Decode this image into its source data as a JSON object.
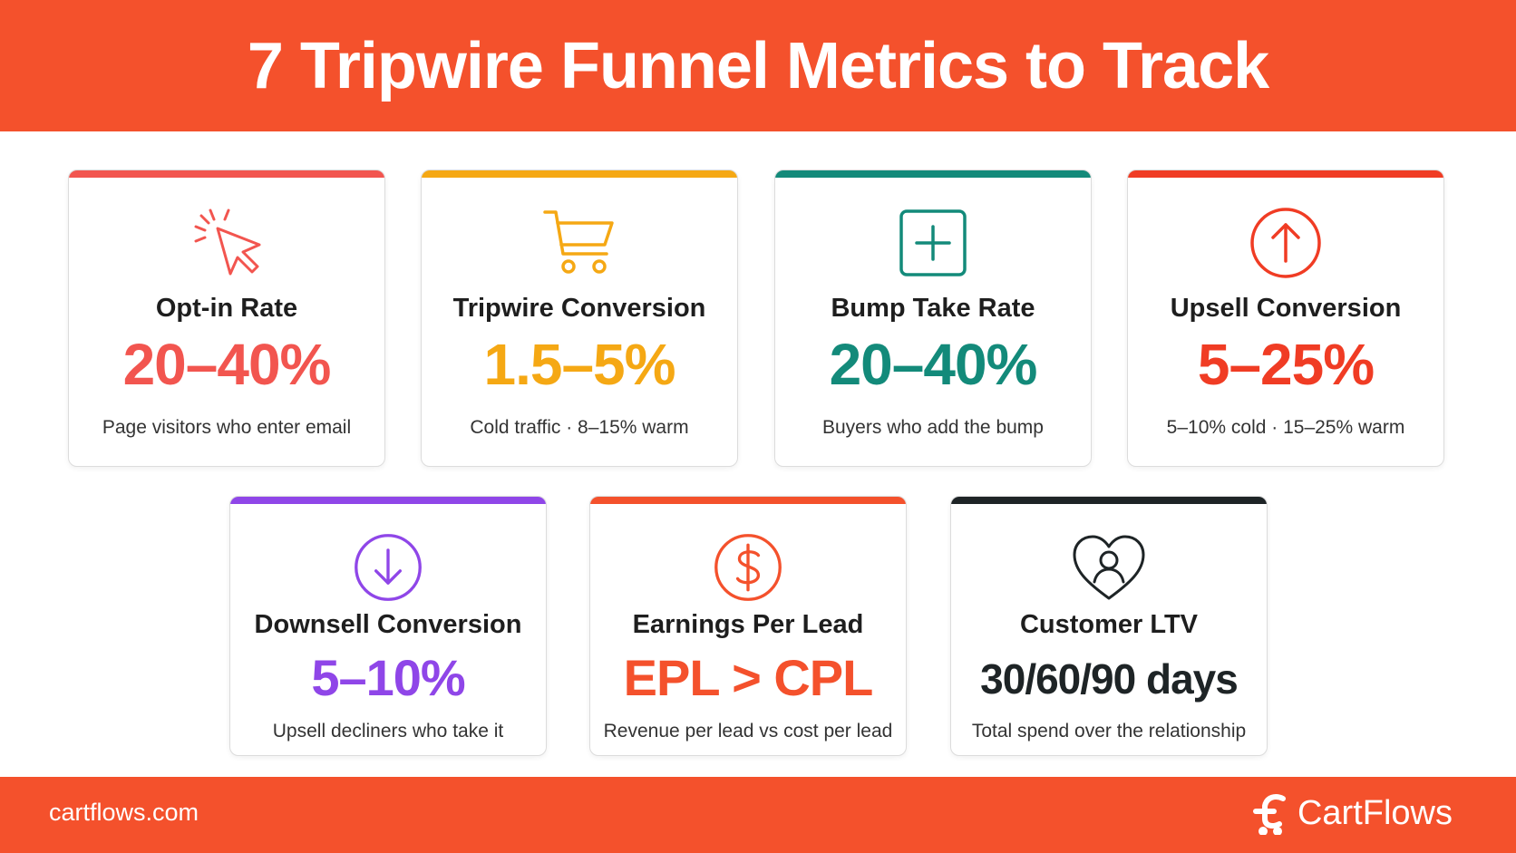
{
  "header": {
    "title": "7 Tripwire Funnel Metrics to Track"
  },
  "colors": {
    "brand": "#f4512c",
    "coral": "#f2554f",
    "amber": "#f5a814",
    "teal": "#138a7a",
    "red": "#f03c24",
    "purple": "#8f46e8",
    "orange": "#f4512c",
    "dark": "#1e2426"
  },
  "metrics": [
    {
      "icon": "cursor-click-icon",
      "title": "Opt-in Rate",
      "value": "20–40%",
      "desc": "Page visitors who enter email"
    },
    {
      "icon": "shopping-cart-icon",
      "title": "Tripwire Conversion",
      "value": "1.5–5%",
      "desc": "Cold traffic · 8–15% warm"
    },
    {
      "icon": "plus-square-icon",
      "title": "Bump Take Rate",
      "value": "20–40%",
      "desc": "Buyers who add the bump"
    },
    {
      "icon": "arrow-up-circle-icon",
      "title": "Upsell Conversion",
      "value": "5–25%",
      "desc": "5–10% cold · 15–25% warm"
    },
    {
      "icon": "arrow-down-circle-icon",
      "title": "Downsell Conversion",
      "value": "5–10%",
      "desc": "Upsell decliners who take it"
    },
    {
      "icon": "dollar-circle-icon",
      "title": "Earnings Per Lead",
      "value": "EPL > CPL",
      "desc": "Revenue per lead vs cost per lead"
    },
    {
      "icon": "heart-user-icon",
      "title": "Customer LTV",
      "value": "30/60/90 days",
      "desc": "Total spend over the relationship"
    }
  ],
  "footer": {
    "site": "cartflows.com",
    "brand": "CartFlows"
  }
}
